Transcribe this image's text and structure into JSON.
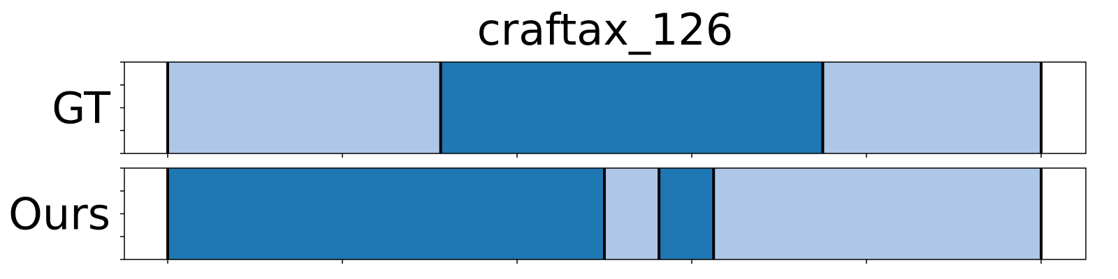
{
  "chart_data": {
    "type": "segmentation-timeline",
    "title": "craftax_126",
    "xlim": [
      0,
      1.1
    ],
    "x_ticks": [
      0,
      0.2,
      0.4,
      0.6,
      0.8,
      1.0
    ],
    "y_ticks": 5,
    "colors": {
      "light": "#aec7e8",
      "dark": "#1f77b4"
    },
    "rows": [
      {
        "label": "GT",
        "segments": [
          {
            "start": 0.0,
            "end": 0.3125,
            "class": "light"
          },
          {
            "start": 0.3125,
            "end": 0.75,
            "class": "dark"
          },
          {
            "start": 0.75,
            "end": 1.0,
            "class": "light"
          }
        ]
      },
      {
        "label": "Ours",
        "segments": [
          {
            "start": 0.0,
            "end": 0.5,
            "class": "dark"
          },
          {
            "start": 0.5,
            "end": 0.5625,
            "class": "light"
          },
          {
            "start": 0.5625,
            "end": 0.625,
            "class": "dark"
          },
          {
            "start": 0.625,
            "end": 1.0,
            "class": "light"
          }
        ]
      }
    ]
  }
}
